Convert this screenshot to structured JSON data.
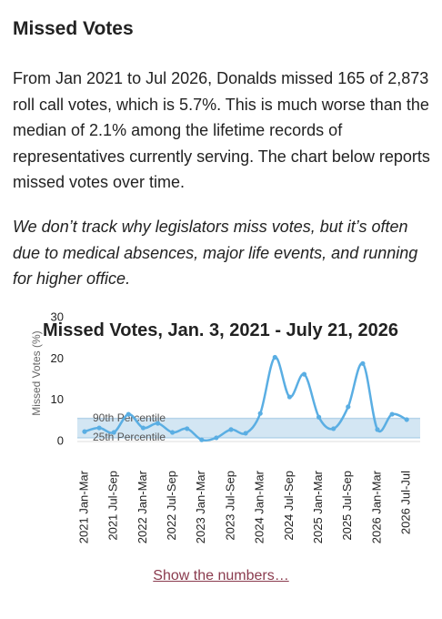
{
  "heading": "Missed Votes",
  "paragraphs": [
    "From Jan 2021 to Jul 2026, Donalds missed 165 of 2,873 roll call votes, which is 5.7%. This is much worse than the median of 2.1% among the lifetime records of representatives currently serving. The chart below reports missed votes over time.",
    "We don’t track why legislators miss votes, but it’s often due to medical absences, major life events, and running for higher office."
  ],
  "link": "Show the numbers…",
  "chart_data": {
    "type": "line",
    "title": "Missed Votes, Jan. 3, 2021 - July 21, 2026",
    "y_label": "Missed Votes (%)",
    "categories": [
      "2021 Jan-Mar",
      null,
      "2021 Jul-Sep",
      null,
      "2022 Jan-Mar",
      null,
      "2022 Jul-Sep",
      null,
      "2023 Jan-Mar",
      null,
      "2023 Jul-Sep",
      null,
      "2024 Jan-Mar",
      null,
      "2024 Jul-Sep",
      null,
      "2025 Jan-Mar",
      null,
      "2025 Jul-Sep",
      null,
      "2026 Jan-Mar",
      null,
      "2026 Jul-Jul"
    ],
    "values": [
      2.4,
      3.3,
      2.2,
      6.6,
      3.3,
      4.4,
      2.2,
      3.1,
      0.4,
      0.9,
      2.9,
      2.0,
      6.8,
      20.4,
      10.8,
      16.3,
      5.9,
      3.1,
      8.4,
      18.9,
      2.9,
      6.6,
      5.3
    ],
    "color": "#5aaee3",
    "ylim": [
      0,
      30
    ],
    "yticks": [
      0,
      10,
      20,
      30
    ],
    "percentiles": [
      {
        "label": "90th Percentile",
        "value": 5.6
      },
      {
        "label": "25th Percentile",
        "value": 0.9
      }
    ],
    "band_color": "#d3e6f3"
  }
}
